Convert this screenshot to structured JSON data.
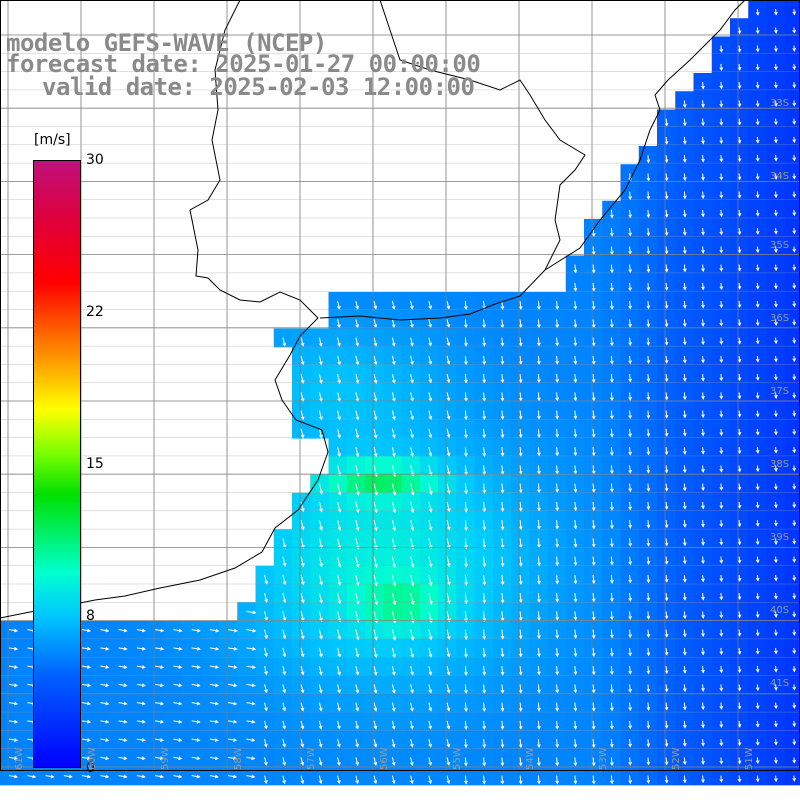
{
  "title": {
    "line1": "modelo GEFS-WAVE (NCEP)",
    "line2": "forecast date: 2025-01-27 00:00:00",
    "line3": "valid date: 2025-02-03 12:00:00"
  },
  "colorbar": {
    "units": "[m/s]",
    "ticks": [
      "30",
      "22",
      "15",
      "8",
      "0"
    ],
    "colors": [
      "#0000ff",
      "#0060ff",
      "#00c8ff",
      "#00ffd0",
      "#00e000",
      "#80ff00",
      "#ffff00",
      "#ff9000",
      "#ff0000",
      "#c0107a"
    ]
  },
  "map": {
    "variable": "wind speed",
    "units": "m/s",
    "land_color": "#ffffff",
    "coastline_color": "#000000",
    "grid_color": "#7a7a7a",
    "lat_labels": [
      "33S",
      "34S",
      "35S",
      "36S",
      "37S",
      "38S",
      "39S",
      "40S",
      "41S"
    ],
    "lon_labels": [
      "61W",
      "60W",
      "59W",
      "58W",
      "57W",
      "56W",
      "55W",
      "54W",
      "53W",
      "52W",
      "51W"
    ]
  }
}
